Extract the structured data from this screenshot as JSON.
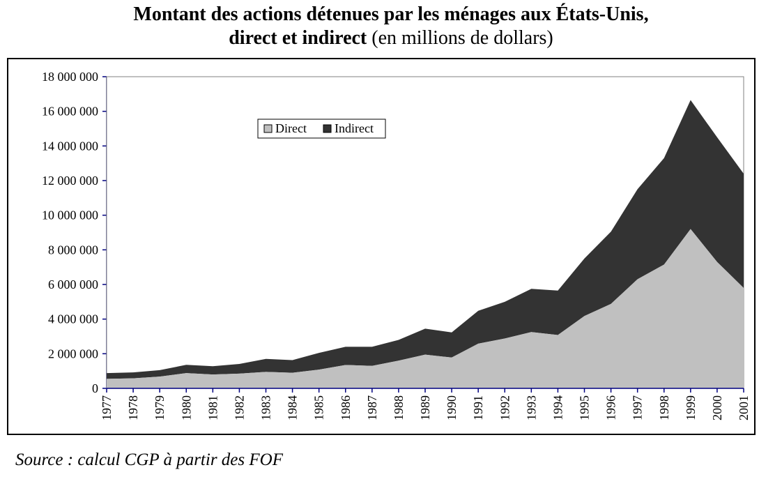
{
  "header": {
    "title_bold_1": "Montant des actions détenues par les ménages aux États-Unis,",
    "title_bold_2": "direct et indirect",
    "title_rest": " (en millions de dollars)"
  },
  "footer": {
    "source": "Source : calcul CGP à partir des FOF"
  },
  "colors": {
    "direct": "#c0c0c0",
    "indirect": "#333333",
    "axis": "#000080",
    "plot_bg": "#ffffff"
  },
  "chart_data": {
    "type": "area",
    "stacked": true,
    "title": "Montant des actions détenues par les ménages aux États-Unis, direct et indirect (en millions de dollars)",
    "xlabel": "",
    "ylabel": "",
    "ylim": [
      0,
      18000000
    ],
    "y_ticks": [
      0,
      2000000,
      4000000,
      6000000,
      8000000,
      10000000,
      12000000,
      14000000,
      16000000,
      18000000
    ],
    "y_tick_labels": [
      "0",
      "2 000 000",
      "4 000 000",
      "6 000 000",
      "8 000 000",
      "10 000 000",
      "12 000 000",
      "14 000 000",
      "16 000 000",
      "18 000 000"
    ],
    "grid": false,
    "legend_position": "top-center",
    "categories": [
      "1977",
      "1978",
      "1979",
      "1980",
      "1981",
      "1982",
      "1983",
      "1984",
      "1985",
      "1986",
      "1987",
      "1988",
      "1989",
      "1990",
      "1991",
      "1992",
      "1993",
      "1994",
      "1995",
      "1996",
      "1997",
      "1998",
      "1999",
      "2000",
      "2001"
    ],
    "series": [
      {
        "name": "Direct",
        "values": [
          550000,
          580000,
          680000,
          880000,
          800000,
          850000,
          950000,
          900000,
          1080000,
          1350000,
          1300000,
          1600000,
          1950000,
          1780000,
          2580000,
          2880000,
          3250000,
          3080000,
          4180000,
          4880000,
          6300000,
          7150000,
          9200000,
          7300000,
          5800000
        ]
      },
      {
        "name": "Indirect",
        "values": [
          330000,
          340000,
          370000,
          480000,
          480000,
          560000,
          750000,
          730000,
          970000,
          1050000,
          1100000,
          1200000,
          1500000,
          1450000,
          1900000,
          2120000,
          2500000,
          2570000,
          3320000,
          4170000,
          5200000,
          6150000,
          7450000,
          7200000,
          6600000
        ]
      }
    ]
  }
}
